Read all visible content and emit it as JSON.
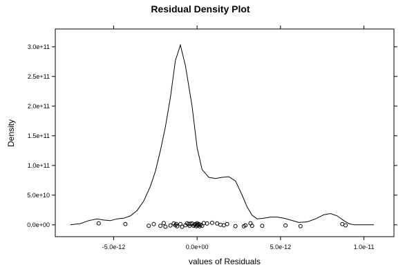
{
  "chart_data": {
    "type": "line",
    "title": "Residual Density Plot",
    "xlabel": "values of Residuals",
    "ylabel": "Density",
    "xlim": [
      -8.5e-12,
      1.18e-11
    ],
    "ylim": [
      -20000000000.0,
      330000000000.0
    ],
    "x_ticks": [
      {
        "value": -5e-12,
        "label": "-5.0e-12"
      },
      {
        "value": 0,
        "label": "0.0e+00"
      },
      {
        "value": 5e-12,
        "label": "5.0e-12"
      },
      {
        "value": 1e-11,
        "label": "1.0e-11"
      }
    ],
    "y_ticks": [
      {
        "value": 0,
        "label": "0.0e+00"
      },
      {
        "value": 50000000000.0,
        "label": "5.0e+10"
      },
      {
        "value": 100000000000.0,
        "label": "1.0e+11"
      },
      {
        "value": 150000000000.0,
        "label": "1.5e+11"
      },
      {
        "value": 200000000000.0,
        "label": "2.0e+11"
      },
      {
        "value": 250000000000.0,
        "label": "2.5e+11"
      },
      {
        "value": 300000000000.0,
        "label": "3.0e+11"
      }
    ],
    "grid": false,
    "series": [
      {
        "x": [
          -7.6e-12,
          -7e-12,
          -6.5e-12,
          -6e-12,
          -5.6e-12,
          -5.2e-12,
          -4.8e-12,
          -4.4e-12,
          -4e-12,
          -3.6e-12,
          -3.2e-12,
          -2.8e-12,
          -2.5e-12,
          -2.2e-12,
          -1.9e-12,
          -1.6e-12,
          -1.3e-12,
          -1e-12,
          -7e-13,
          -3e-13,
          0.0,
          3e-13,
          7e-13,
          1.1e-12,
          1.5e-12,
          1.9e-12,
          2.3e-12,
          2.7e-12,
          3e-12,
          3.3e-12,
          3.6e-12,
          4e-12,
          4.4e-12,
          4.8e-12,
          5.2e-12,
          5.6e-12,
          6.1e-12,
          6.6e-12,
          7.1e-12,
          7.6e-12,
          8e-12,
          8.4e-12,
          8.8e-12,
          9.1e-12,
          9.4e-12,
          9.8e-12,
          1.02e-11,
          1.06e-11
        ],
        "y": [
          0.0,
          2000000000.0,
          7000000000.0,
          10000000000.0,
          8000000000.0,
          7000000000.0,
          10000000000.0,
          11000000000.0,
          15000000000.0,
          24000000000.0,
          40000000000.0,
          65000000000.0,
          90000000000.0,
          125000000000.0,
          165000000000.0,
          215000000000.0,
          277000000000.0,
          303000000000.0,
          268000000000.0,
          200000000000.0,
          130000000000.0,
          93000000000.0,
          80000000000.0,
          78000000000.0,
          80000000000.0,
          81000000000.0,
          74000000000.0,
          50000000000.0,
          30000000000.0,
          16000000000.0,
          10000000000.0,
          11000000000.0,
          13000000000.0,
          13000000000.0,
          11000000000.0,
          8000000000.0,
          4000000000.0,
          5000000000.0,
          10000000000.0,
          17000000000.0,
          19000000000.0,
          15000000000.0,
          7000000000.0,
          2000000000.0,
          0.0,
          0.0,
          0.0,
          0.0
        ]
      }
    ],
    "rug": {
      "x": [
        -5.9e-12,
        -4.3e-12,
        -2.9e-12,
        -2.6e-12,
        -2.2e-12,
        -2e-12,
        -1.9e-12,
        -1.6e-12,
        -1.4e-12,
        -1.3e-12,
        -1.25e-12,
        -1.2e-12,
        -1e-12,
        -9e-13,
        -7e-13,
        -6e-13,
        -5e-13,
        -4.5e-13,
        -4e-13,
        -3e-13,
        -2e-13,
        -1.5e-13,
        -1e-13,
        -5e-14,
        0.0,
        2e-14,
        5e-14,
        1e-13,
        1.5e-13,
        2e-13,
        3e-13,
        4e-13,
        6e-13,
        9e-13,
        1.2e-12,
        1.4e-12,
        1.6e-12,
        1.8e-12,
        2.3e-12,
        2.8e-12,
        2.9e-12,
        3.2e-12,
        3.3e-12,
        3.9e-12,
        5.3e-12,
        6.2e-12,
        8.7e-12,
        8.9e-12
      ],
      "y": [
        2600000000.0,
        1200000000.0,
        -1800000000.0,
        1200000000.0,
        -1800000000.0,
        2900000000.0,
        -3200000000.0,
        -1200000000.0,
        2200000000.0,
        -800000000.0,
        1200000000.0,
        -2500000000.0,
        1200000000.0,
        -3200000000.0,
        -800000000.0,
        2600000000.0,
        1200000000.0,
        -1500000000.0,
        1800000000.0,
        2200000000.0,
        -1800000000.0,
        0.0,
        1200000000.0,
        -2200000000.0,
        2600000000.0,
        0.0,
        -1200000000.0,
        1200000000.0,
        -2500000000.0,
        0.0,
        -1800000000.0,
        2900000000.0,
        2200000000.0,
        3400000000.0,
        2200000000.0,
        0.0,
        -800000000.0,
        1200000000.0,
        -2200000000.0,
        -2500000000.0,
        -800000000.0,
        2600000000.0,
        -1800000000.0,
        -1800000000.0,
        -1200000000.0,
        -2200000000.0,
        1200000000.0,
        -800000000.0
      ]
    }
  }
}
